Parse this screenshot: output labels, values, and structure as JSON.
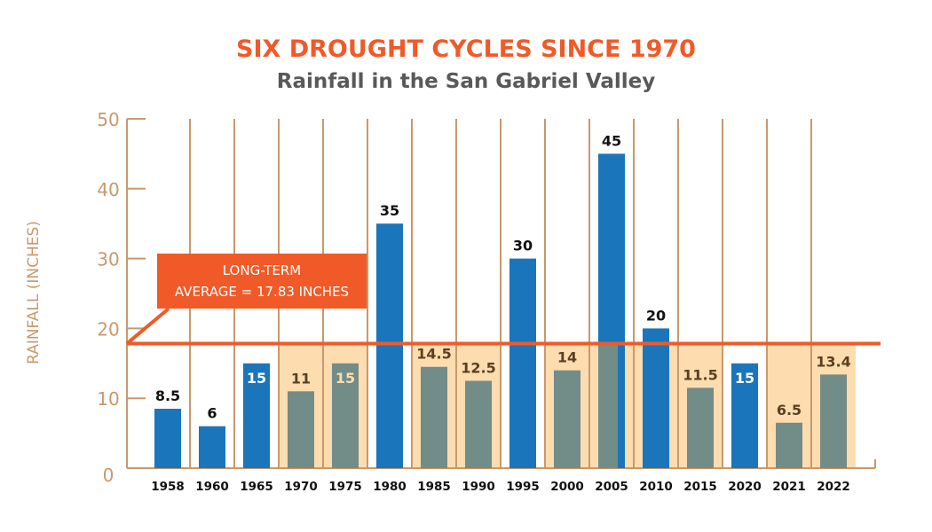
{
  "chart_data": {
    "type": "bar",
    "title": "SIX DROUGHT CYCLES SINCE 1970",
    "subtitle": "Rainfall in the San Gabriel Valley",
    "ylabel": "RAINFALL (INCHES)",
    "xlabel": "",
    "ylim": [
      0,
      50
    ],
    "yticks": [
      0,
      10,
      20,
      30,
      40,
      50
    ],
    "categories": [
      "1958",
      "1960",
      "1965",
      "1970",
      "1975",
      "1980",
      "1985",
      "1990",
      "1995",
      "2000",
      "2005",
      "2010",
      "2015",
      "2020",
      "2021",
      "2022"
    ],
    "values": [
      8.5,
      6,
      15,
      11,
      15,
      35,
      14.5,
      12.5,
      30,
      14,
      45,
      20,
      11.5,
      15,
      6.5,
      13.4
    ],
    "labels": [
      "8.5",
      "6",
      "15",
      "11",
      "15",
      "35",
      "14.5",
      "12.5",
      "30",
      "14",
      "45",
      "20",
      "11.5",
      "15",
      "6.5",
      "13.4"
    ],
    "drought": [
      false,
      false,
      false,
      true,
      true,
      false,
      true,
      true,
      false,
      true,
      false,
      false,
      true,
      false,
      true,
      true
    ],
    "shaded_background": [
      false,
      false,
      false,
      true,
      true,
      false,
      true,
      true,
      false,
      true,
      true,
      true,
      true,
      false,
      true,
      true
    ],
    "average": {
      "value": 17.83,
      "label_line1": "LONG-TERM",
      "label_line2": "AVERAGE = 17.83 INCHES"
    },
    "grid": "vertical",
    "colors": {
      "wet": "#1b75bb",
      "drought": "#728c87",
      "drought_band": "#fddcb0",
      "axis": "#c8996b",
      "average": "#f05a28",
      "title": "#f05a28",
      "subtitle": "#595959"
    }
  }
}
